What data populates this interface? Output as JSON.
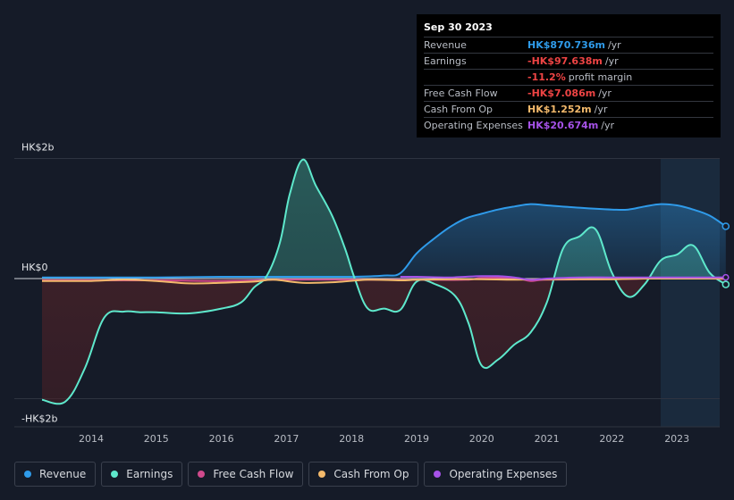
{
  "tooltip": {
    "date": "Sep 30 2023",
    "rows": [
      {
        "label": "Revenue",
        "value": "HK$870.736m",
        "unit": "/yr",
        "color": "#2f9bea"
      },
      {
        "label": "Earnings",
        "value": "-HK$97.638m",
        "unit": "/yr",
        "color": "#ee4444"
      },
      {
        "label": "",
        "value": "-11.2%",
        "unit": "profit margin",
        "color": "#ee4444"
      },
      {
        "label": "Free Cash Flow",
        "value": "-HK$7.086m",
        "unit": "/yr",
        "color": "#ee4444"
      },
      {
        "label": "Cash From Op",
        "value": "HK$1.252m",
        "unit": "/yr",
        "color": "#f3b96b"
      },
      {
        "label": "Operating Expenses",
        "value": "HK$20.674m",
        "unit": "/yr",
        "color": "#a652e8"
      }
    ]
  },
  "legend": [
    {
      "label": "Revenue",
      "color": "#2f9bea"
    },
    {
      "label": "Earnings",
      "color": "#5ee8cc"
    },
    {
      "label": "Free Cash Flow",
      "color": "#d04a8c"
    },
    {
      "label": "Cash From Op",
      "color": "#f3b96b"
    },
    {
      "label": "Operating Expenses",
      "color": "#a652e8"
    }
  ],
  "chart_data": {
    "type": "area",
    "title": "",
    "xlabel": "",
    "ylabel": "",
    "unit": "HK$ millions",
    "ylim": [
      -2000,
      2000
    ],
    "y_tick_labels": [
      "HK$2b",
      "HK$0",
      "-HK$2b"
    ],
    "y_tick_values": [
      2000,
      0,
      -2000
    ],
    "x_ticks": [
      2014,
      2015,
      2016,
      2017,
      2018,
      2019,
      2020,
      2021,
      2022,
      2023
    ],
    "x_range": [
      2013.3,
      2023.75
    ],
    "highlight_start": 2022.75,
    "series": [
      {
        "name": "Revenue",
        "color": "#2f9bea",
        "x": [
          2013.3,
          2014,
          2015,
          2016,
          2017,
          2018,
          2018.5,
          2018.75,
          2019.0,
          2019.25,
          2019.5,
          2019.75,
          2020.0,
          2020.25,
          2020.5,
          2020.75,
          2021.0,
          2021.5,
          2022.0,
          2022.25,
          2022.5,
          2022.75,
          2023.0,
          2023.25,
          2023.5,
          2023.75
        ],
        "values": [
          20,
          20,
          20,
          30,
          30,
          30,
          50,
          90,
          420,
          650,
          850,
          1000,
          1080,
          1150,
          1200,
          1240,
          1220,
          1180,
          1150,
          1150,
          1200,
          1240,
          1220,
          1150,
          1050,
          870
        ]
      },
      {
        "name": "Earnings",
        "color": "#5ee8cc",
        "x": [
          2013.3,
          2013.6,
          2013.9,
          2014.2,
          2014.5,
          2014.75,
          2015.0,
          2015.5,
          2016.0,
          2016.3,
          2016.5,
          2016.7,
          2016.9,
          2017.05,
          2017.25,
          2017.45,
          2017.7,
          2017.9,
          2018.05,
          2018.25,
          2018.5,
          2018.75,
          2019.0,
          2019.3,
          2019.6,
          2019.8,
          2020.0,
          2020.25,
          2020.5,
          2020.75,
          2021.0,
          2021.25,
          2021.5,
          2021.75,
          2022.0,
          2022.25,
          2022.5,
          2022.75,
          2023.0,
          2023.25,
          2023.5,
          2023.75
        ],
        "values": [
          -2020,
          -2050,
          -1500,
          -650,
          -550,
          -560,
          -560,
          -580,
          -500,
          -400,
          -150,
          50,
          600,
          1400,
          1980,
          1550,
          1050,
          500,
          0,
          -500,
          -500,
          -520,
          -50,
          -100,
          -300,
          -750,
          -1450,
          -1350,
          -1100,
          -900,
          -400,
          500,
          700,
          820,
          100,
          -300,
          -100,
          300,
          400,
          550,
          100,
          -97.638
        ]
      },
      {
        "name": "Free Cash Flow",
        "color": "#d04a8c",
        "x": [
          2013.3,
          2014,
          2015,
          2016,
          2016.8,
          2017,
          2018,
          2019,
          2019.75,
          2020,
          2020.5,
          2020.75,
          2021,
          2022,
          2022.5,
          2023,
          2023.5,
          2023.75
        ],
        "values": [
          -30,
          -30,
          -30,
          -40,
          -20,
          -20,
          -20,
          -20,
          -20,
          10,
          10,
          -40,
          -20,
          -10,
          0,
          10,
          0,
          -7.086
        ]
      },
      {
        "name": "Cash From Op",
        "color": "#f3b96b",
        "x": [
          2013.3,
          2014,
          2014.5,
          2015,
          2015.5,
          2016.0,
          2016.5,
          2016.8,
          2017.25,
          2017.75,
          2018.25,
          2018.75,
          2019,
          2019.5,
          2020,
          2020.5,
          2021,
          2022,
          2022.5,
          2023,
          2023.5,
          2023.75
        ],
        "values": [
          -40,
          -40,
          -20,
          -40,
          -80,
          -70,
          -50,
          -20,
          -70,
          -60,
          -20,
          -30,
          -20,
          -10,
          -10,
          -20,
          -10,
          -10,
          0,
          0,
          0,
          1.252
        ]
      },
      {
        "name": "Operating Expenses",
        "color": "#a652e8",
        "x": [
          2018.75,
          2019,
          2019.5,
          2019.75,
          2020,
          2020.25,
          2020.5,
          2020.75,
          2021,
          2021.5,
          2022,
          2022.5,
          2023,
          2023.5,
          2023.75
        ],
        "values": [
          30,
          30,
          20,
          30,
          40,
          40,
          20,
          -20,
          0,
          20,
          20,
          20,
          20,
          20,
          20.674
        ]
      }
    ]
  }
}
